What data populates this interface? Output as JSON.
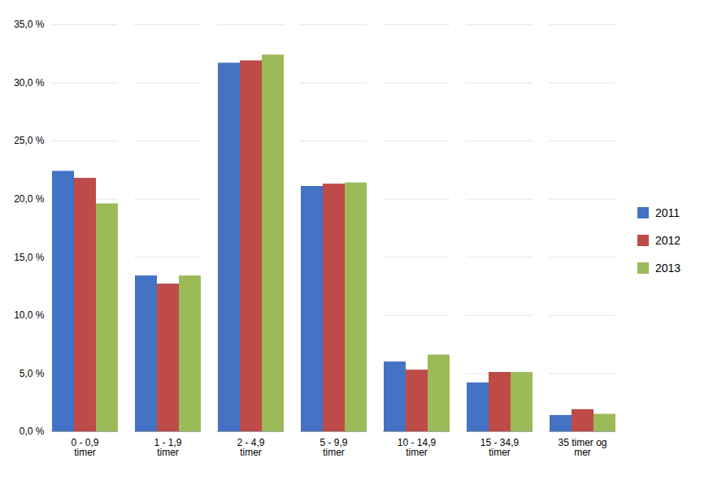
{
  "chart_data": {
    "type": "bar",
    "categories": [
      "0 - 0,9\ntimer",
      "1 - 1,9\ntimer",
      "2 - 4,9\ntimer",
      "5 - 9,9\ntimer",
      "10 - 14,9\ntimer",
      "15 - 34,9\ntimer",
      "35 timer og\nmer"
    ],
    "series": [
      {
        "name": "2011",
        "color": "#4472C4",
        "values": [
          22.4,
          13.4,
          31.7,
          21.1,
          6.0,
          4.2,
          1.4
        ]
      },
      {
        "name": "2012",
        "color": "#BE4B48",
        "values": [
          21.8,
          12.7,
          31.9,
          21.3,
          5.3,
          5.1,
          1.9
        ]
      },
      {
        "name": "2013",
        "color": "#9BBB59",
        "values": [
          19.6,
          13.4,
          32.4,
          21.4,
          6.6,
          5.1,
          1.5
        ]
      }
    ],
    "ylim": [
      0,
      35
    ],
    "yticks": [
      {
        "value": 0,
        "label": "0,0 %"
      },
      {
        "value": 5,
        "label": "5,0 %"
      },
      {
        "value": 10,
        "label": "10,0 %"
      },
      {
        "value": 15,
        "label": "15,0 %"
      },
      {
        "value": 20,
        "label": "20,0 %"
      },
      {
        "value": 25,
        "label": "25,0 %"
      },
      {
        "value": 30,
        "label": "30,0 %"
      },
      {
        "value": 35,
        "label": "35,0 %"
      }
    ],
    "grid": true,
    "legend": "right"
  }
}
